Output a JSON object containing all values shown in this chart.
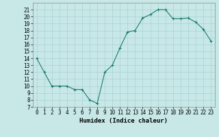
{
  "x": [
    0,
    1,
    2,
    3,
    4,
    5,
    6,
    7,
    8,
    9,
    10,
    11,
    12,
    13,
    14,
    15,
    16,
    17,
    18,
    19,
    20,
    21,
    22,
    23
  ],
  "y": [
    14,
    12,
    10,
    10,
    10,
    9.5,
    9.5,
    8,
    7.5,
    12,
    13,
    15.5,
    17.8,
    18,
    19.8,
    20.3,
    21,
    21,
    19.7,
    19.7,
    19.8,
    19.2,
    18.2,
    16.5
  ],
  "line_color": "#1a7a6a",
  "marker": "+",
  "background_color": "#c8e8e8",
  "grid_color": "#a8d0d0",
  "xlabel": "Humidex (Indice chaleur)",
  "ylim": [
    7,
    22
  ],
  "xlim": [
    -0.5,
    23.5
  ],
  "yticks": [
    7,
    8,
    9,
    10,
    11,
    12,
    13,
    14,
    15,
    16,
    17,
    18,
    19,
    20,
    21
  ],
  "xtick_labels": [
    "0",
    "1",
    "2",
    "3",
    "4",
    "5",
    "6",
    "7",
    "8",
    "9",
    "10",
    "11",
    "12",
    "13",
    "14",
    "15",
    "16",
    "17",
    "18",
    "19",
    "20",
    "21",
    "22",
    "23"
  ],
  "axis_fontsize": 6,
  "tick_fontsize": 5.5,
  "xlabel_fontsize": 6.5
}
